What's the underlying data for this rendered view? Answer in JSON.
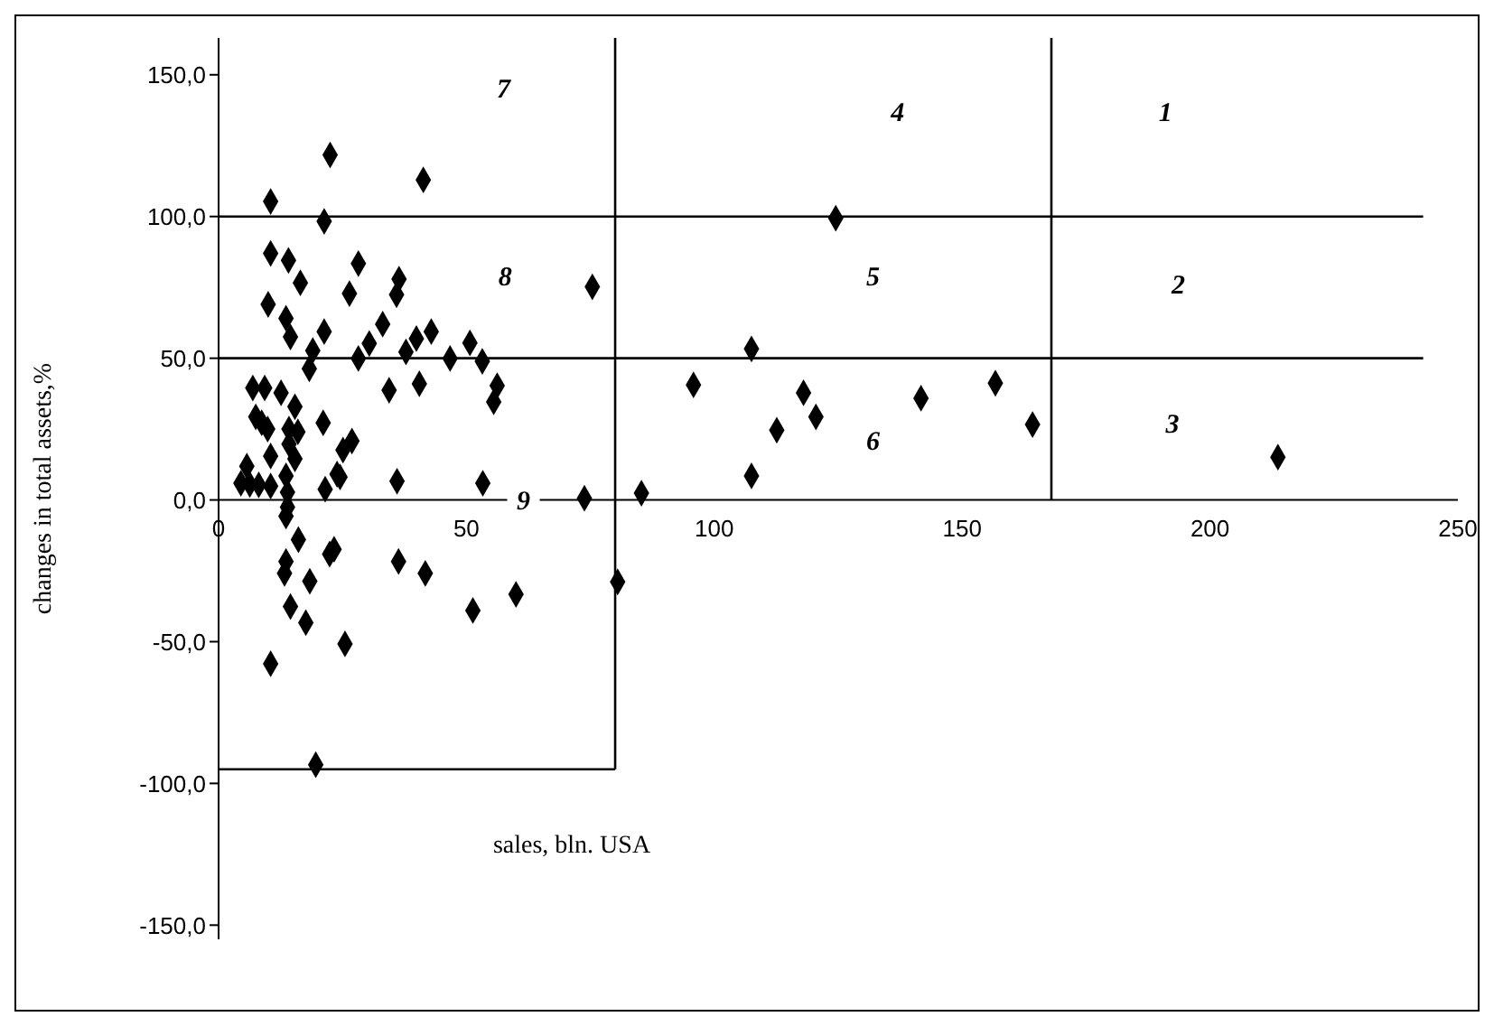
{
  "chart_data": {
    "type": "scatter",
    "xlabel": "sales, bln. USA",
    "ylabel": "changes in total  assets,%",
    "xlim": [
      0,
      250
    ],
    "xticks": [
      0,
      50,
      100,
      150,
      200,
      250
    ],
    "ylim": [
      -155,
      163
    ],
    "yticks": [
      {
        "value": -150,
        "label": "-150,0"
      },
      {
        "value": -100,
        "label": "-100,0"
      },
      {
        "value": -50,
        "label": "-50,0"
      },
      {
        "value": 0,
        "label": "0,0"
      },
      {
        "value": 50,
        "label": "50,0"
      },
      {
        "value": 100,
        "label": "100,0"
      },
      {
        "value": 150,
        "label": "150,0"
      }
    ],
    "grid": false,
    "marker": "diamond",
    "series": [
      {
        "color": "#000000",
        "x": [
          75.4,
          124.5,
          107.5,
          95.8,
          118,
          120.5,
          112.6,
          141.7,
          156.7,
          164.2,
          213.7,
          107.5,
          85.3,
          73.8,
          22.5,
          41.3,
          10.5,
          21.3,
          10.5,
          14.1,
          28.2,
          16.5,
          36.4,
          35.9,
          26.4,
          10,
          13.6,
          33.1,
          14.5,
          21.3,
          30.4,
          42.9,
          39.9,
          50.7,
          19,
          28.2,
          37.8,
          46.7,
          53.2,
          18.3,
          34.4,
          40.5,
          56.2,
          55.5,
          6.9,
          9.3,
          12.6,
          15.4,
          8.7,
          7.5,
          9.9,
          14.2,
          16,
          21.1,
          26.9,
          25.1,
          14.2,
          10.5,
          15.4,
          5.7,
          23.9,
          13.6,
          4.5,
          6.3,
          8.1,
          10.5,
          13.9,
          21.5,
          24.5,
          36,
          53.3,
          13.9,
          13.6,
          16.1,
          23.3,
          22.4,
          36.3,
          41.7,
          13.6,
          13.3,
          18.4,
          14.5,
          17.6,
          25.5,
          10.5,
          51.3,
          60,
          80.5,
          19.6
        ],
        "values": [
          75.2,
          99.4,
          53.3,
          40.6,
          37.8,
          29.3,
          24.6,
          35.9,
          41.2,
          26.6,
          15.1,
          8.5,
          2.4,
          0.6,
          121.7,
          112.9,
          105.3,
          98.3,
          87,
          84.5,
          83.4,
          76.6,
          77.9,
          72.4,
          72.8,
          69,
          64.1,
          62,
          57.5,
          59.4,
          55.2,
          59.4,
          56.9,
          55.4,
          52.7,
          49.9,
          52.2,
          49.9,
          48.9,
          46.3,
          38.7,
          41,
          40.3,
          34.6,
          39.5,
          39.5,
          37.8,
          32.9,
          27.2,
          29.3,
          25,
          25,
          24,
          27.2,
          20.8,
          17.6,
          19.7,
          15.5,
          14.5,
          11.9,
          9.1,
          8.5,
          5.9,
          5.5,
          5.3,
          4.9,
          2.7,
          3.8,
          8.1,
          6.6,
          5.9,
          -2.5,
          -5.7,
          -14,
          -17.4,
          -19.1,
          -21.7,
          -25.9,
          -21.7,
          -25.9,
          -28.7,
          -37.6,
          -43.3,
          -50.8,
          -57.8,
          -39,
          -33.3,
          -28.9,
          -93.4
        ]
      },
      {
        "type": "line",
        "color": "#000000",
        "marker": "none",
        "x": [
          80,
          80
        ],
        "values": [
          163,
          -95
        ]
      },
      {
        "type": "line",
        "color": "#000000",
        "marker": "none",
        "x": [
          168,
          168
        ],
        "values": [
          163,
          0
        ]
      },
      {
        "type": "line",
        "color": "#000000",
        "marker": "none",
        "x": [
          0,
          243
        ],
        "values": [
          100,
          100
        ]
      },
      {
        "type": "line",
        "color": "#000000",
        "marker": "none",
        "x": [
          0,
          243
        ],
        "values": [
          50,
          50
        ]
      },
      {
        "type": "line",
        "color": "#000000",
        "marker": "none",
        "x": [
          0,
          80
        ],
        "values": [
          -95,
          -95
        ]
      }
    ],
    "annotations": [
      "1",
      "2",
      "3",
      "4",
      "5",
      "6",
      "7",
      "8",
      "9"
    ]
  }
}
